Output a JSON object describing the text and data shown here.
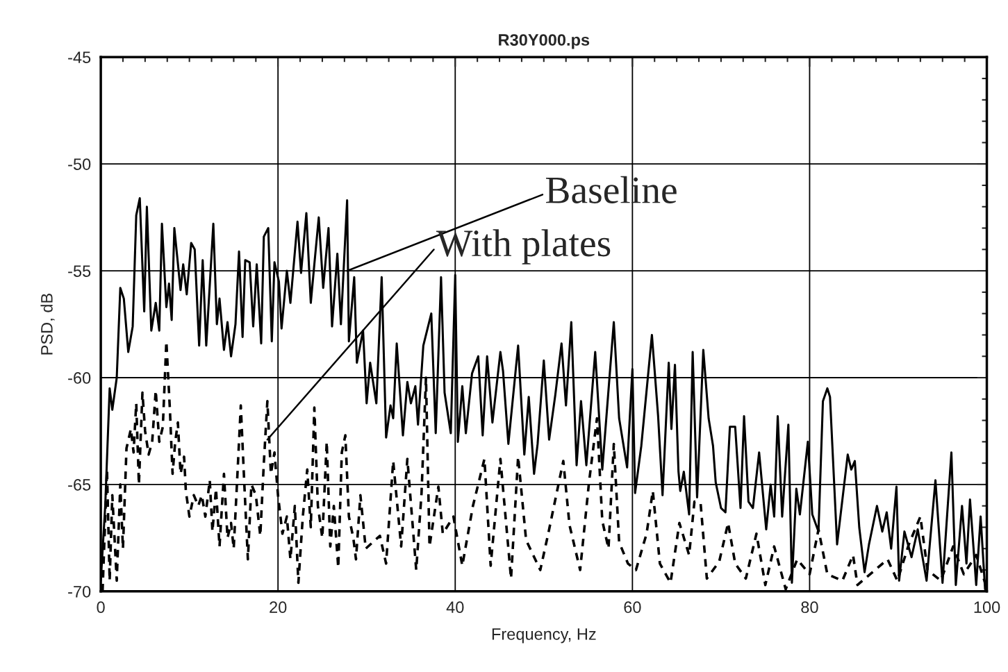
{
  "chart_data": {
    "type": "line",
    "title": "R30Y000.ps",
    "xlabel": "Frequency, Hz",
    "ylabel": "PSD, dB",
    "xlim": [
      0,
      100
    ],
    "ylim": [
      -70,
      -45
    ],
    "xticks": [
      0,
      20,
      40,
      60,
      80,
      100
    ],
    "yticks": [
      -70,
      -65,
      -60,
      -55,
      -50,
      -45
    ],
    "grid": true,
    "legend": false,
    "series": [
      {
        "color": "#000000",
        "line_style": "solid",
        "x": [
          0,
          0.5,
          1,
          1.3,
          1.8,
          2.2,
          2.6,
          3.1,
          3.6,
          4.0,
          4.4,
          4.9,
          5.2,
          5.7,
          6.2,
          6.6,
          6.9,
          7.4,
          7.7,
          8.0,
          8.3,
          9.0,
          9.3,
          9.7,
          10.2,
          10.6,
          11.1,
          11.5,
          11.9,
          12.7,
          13.1,
          13.4,
          13.9,
          14.3,
          14.7,
          15.2,
          15.6,
          16.0,
          16.3,
          16.8,
          17.2,
          17.6,
          18.1,
          18.4,
          18.9,
          19.3,
          19.6,
          20.1,
          20.4,
          21.0,
          21.4,
          22.2,
          22.6,
          23.2,
          23.7,
          24.1,
          24.6,
          25.1,
          25.7,
          26.1,
          26.7,
          27.1,
          27.8,
          28.0,
          28.6,
          28.9,
          29.6,
          30.0,
          30.4,
          31.1,
          31.7,
          32.2,
          32.7,
          33.0,
          33.4,
          34.1,
          34.6,
          35.0,
          35.5,
          35.8,
          36.4,
          37.3,
          37.8,
          38.4,
          38.8,
          39.5,
          40.0,
          40.3,
          40.8,
          41.2,
          41.9,
          42.6,
          43.1,
          43.6,
          44.2,
          45.1,
          45.4,
          46.0,
          47.1,
          47.8,
          48.3,
          48.9,
          49.3,
          50.0,
          50.6,
          51.3,
          52.0,
          52.5,
          53.1,
          53.7,
          54.2,
          54.8,
          55.8,
          56.6,
          57.9,
          58.5,
          59.4,
          60.0,
          60.3,
          61.0,
          62.2,
          62.9,
          63.4,
          64.1,
          64.4,
          64.8,
          65.2,
          65.4,
          65.8,
          66.4,
          66.8,
          67.3,
          68.0,
          68.6,
          69.1,
          69.4,
          70.0,
          70.5,
          71.0,
          71.6,
          72.2,
          72.6,
          73.1,
          73.6,
          74.3,
          75.1,
          75.6,
          76.0,
          76.4,
          76.9,
          77.6,
          78.0,
          78.5,
          78.9,
          79.8,
          80.3,
          81.0,
          81.5,
          82.0,
          82.3,
          83.1,
          84.3,
          84.7,
          85.1,
          85.6,
          86.2,
          86.7,
          87.6,
          88.2,
          88.7,
          89.2,
          89.8,
          90.1,
          90.7,
          91.5,
          92.2,
          93.2,
          94.2,
          95.0,
          96.0,
          96.5,
          97.2,
          97.7,
          98.1,
          98.8,
          99.3,
          99.8
        ],
        "values": [
          -69.5,
          -66,
          -60.5,
          -61.5,
          -60,
          -55.8,
          -56.3,
          -58.8,
          -57.6,
          -52.4,
          -51.6,
          -56.9,
          -52,
          -57.8,
          -56.5,
          -57.8,
          -52.8,
          -56.7,
          -55.6,
          -57.3,
          -53,
          -55.9,
          -54.7,
          -56.1,
          -53.7,
          -54,
          -58.5,
          -54.5,
          -58.5,
          -52.8,
          -57.5,
          -56.3,
          -58.7,
          -57.4,
          -59,
          -57.5,
          -54.1,
          -58.1,
          -54.5,
          -54.6,
          -57.6,
          -54.7,
          -58.4,
          -53.4,
          -53,
          -58.3,
          -54.6,
          -55.5,
          -57.7,
          -55,
          -56.5,
          -52.7,
          -55.1,
          -52.3,
          -56.5,
          -54.7,
          -52.5,
          -55.8,
          -53,
          -57.6,
          -54.2,
          -57.5,
          -51.7,
          -58.3,
          -55.3,
          -59.3,
          -57.8,
          -61.2,
          -59.3,
          -61.2,
          -55.3,
          -62.8,
          -61.3,
          -61.9,
          -58.4,
          -62.7,
          -60.2,
          -61.2,
          -60.4,
          -62.2,
          -58.5,
          -57,
          -62.6,
          -55.3,
          -60.7,
          -62.6,
          -55.2,
          -63,
          -60.4,
          -62.6,
          -59.8,
          -59,
          -62.7,
          -59,
          -62.1,
          -58.8,
          -59.7,
          -63.1,
          -58.5,
          -63.6,
          -60.9,
          -64.5,
          -63.1,
          -59.2,
          -62.9,
          -60.8,
          -58.4,
          -61.3,
          -57.4,
          -64.1,
          -61.1,
          -64.1,
          -58.8,
          -64.3,
          -57.4,
          -61.9,
          -64.2,
          -59.6,
          -65.4,
          -63.2,
          -58,
          -61.8,
          -65.5,
          -59.3,
          -62.4,
          -59.4,
          -64.4,
          -65.3,
          -64.4,
          -66.4,
          -58.8,
          -65.6,
          -58.7,
          -61.9,
          -63.2,
          -64.9,
          -66.1,
          -66.3,
          -62.3,
          -62.3,
          -66.1,
          -61.8,
          -65.8,
          -66.1,
          -63.5,
          -67.1,
          -65,
          -66.5,
          -61.8,
          -66.5,
          -62.2,
          -69.6,
          -65.2,
          -66.4,
          -63,
          -66.4,
          -67.2,
          -61.1,
          -60.5,
          -60.9,
          -67.8,
          -63.6,
          -64.3,
          -63.9,
          -67,
          -69.1,
          -67.8,
          -66,
          -67.2,
          -66.3,
          -68,
          -65.1,
          -69.5,
          -67.2,
          -68.4,
          -67.1,
          -69.5,
          -64.8,
          -69.6,
          -63.5,
          -69.7,
          -66,
          -68.7,
          -65.7,
          -69.7,
          -66.5,
          -69.9
        ]
      },
      {
        "color": "#000000",
        "line_style": "dashed",
        "x": [
          0.2,
          0.7,
          1.0,
          1.3,
          1.8,
          2.2,
          2.5,
          2.9,
          3.4,
          3.7,
          4.0,
          4.3,
          4.7,
          5.0,
          5.4,
          5.8,
          6.2,
          6.6,
          7.0,
          7.4,
          7.8,
          8.1,
          8.4,
          8.7,
          9.0,
          9.4,
          9.6,
          10.0,
          10.5,
          11.0,
          11.4,
          11.8,
          12.3,
          12.6,
          13.0,
          13.4,
          13.9,
          14.3,
          14.7,
          15.0,
          15.4,
          15.8,
          16.2,
          16.6,
          17.0,
          17.5,
          18.0,
          18.4,
          18.8,
          19.2,
          19.6,
          20.0,
          20.5,
          21.0,
          21.4,
          21.9,
          22.3,
          22.8,
          23.3,
          23.7,
          24.1,
          24.5,
          25.0,
          25.5,
          25.9,
          26.3,
          26.8,
          27.2,
          27.6,
          28.0,
          28.5,
          28.8,
          29.3,
          29.9,
          31.5,
          32.2,
          33.0,
          33.9,
          34.6,
          35.6,
          36.2,
          36.7,
          37.1,
          38.1,
          38.6,
          39.8,
          40.8,
          42.0,
          43.3,
          44.0,
          45.1,
          46.3,
          47.1,
          48.0,
          49.6,
          50.5,
          52.2,
          52.9,
          54.1,
          55.1,
          56.0,
          56.6,
          57.3,
          57.9,
          58.5,
          59.5,
          60.4,
          61.6,
          62.3,
          63.1,
          64.3,
          65.3,
          66.4,
          67.0,
          67.7,
          68.4,
          69.8,
          70.8,
          71.6,
          72.8,
          74.0,
          75.0,
          76.0,
          77.3,
          78.6,
          80.0,
          81.0,
          82.0,
          83.7,
          84.9,
          85.4,
          88.8,
          89.9,
          91.2,
          92.5,
          93.3,
          94.8,
          96.2,
          97.4,
          98.8,
          99.8
        ],
        "values": [
          -70,
          -64.3,
          -69.5,
          -65.5,
          -69.5,
          -65,
          -68,
          -63.3,
          -62.4,
          -63.5,
          -61.2,
          -65,
          -60.7,
          -62.5,
          -63.6,
          -63,
          -60.6,
          -63,
          -62.3,
          -58.3,
          -61.5,
          -64.5,
          -63,
          -62.1,
          -64.5,
          -63.7,
          -65.3,
          -66.5,
          -65.5,
          -66,
          -65.5,
          -66.5,
          -64.8,
          -67.2,
          -65.2,
          -67.9,
          -64.5,
          -67.5,
          -66.8,
          -68,
          -64.7,
          -61.3,
          -65,
          -68.5,
          -65,
          -65.5,
          -67.4,
          -64,
          -61.1,
          -64.5,
          -63.5,
          -65.5,
          -67.3,
          -66.5,
          -68.5,
          -66,
          -69.6,
          -66.5,
          -64.3,
          -67,
          -61.4,
          -66,
          -67.5,
          -63,
          -67.9,
          -66,
          -68.9,
          -63.5,
          -62.7,
          -66.5,
          -67.5,
          -68.5,
          -65.5,
          -68,
          -67.4,
          -68.7,
          -63.9,
          -67.9,
          -63.8,
          -69,
          -65.4,
          -60,
          -67.9,
          -65.1,
          -67.3,
          -66.5,
          -68.8,
          -66,
          -63.8,
          -68.8,
          -63.8,
          -69.4,
          -63.7,
          -67.6,
          -69,
          -67.3,
          -63.9,
          -66.9,
          -69,
          -64.9,
          -61.9,
          -66.7,
          -68,
          -63.1,
          -67.7,
          -68.7,
          -69,
          -67.3,
          -65.3,
          -68.7,
          -69.6,
          -66.8,
          -68.3,
          -65.8,
          -65.9,
          -69.4,
          -68.6,
          -66.8,
          -68.7,
          -69.4,
          -67.3,
          -69.7,
          -67.9,
          -69.9,
          -68.5,
          -69.2,
          -67.1,
          -69.2,
          -69.5,
          -68.3,
          -69.7,
          -68.5,
          -69.5,
          -67.8,
          -66.5,
          -69,
          -69.5,
          -67.9,
          -69.2,
          -68.3,
          -69.6
        ]
      }
    ],
    "annotations": [
      {
        "text": "Baseline",
        "x": 27.8,
        "y": -55
      },
      {
        "text": "With plates",
        "x": 18.8,
        "y": -62.9
      }
    ]
  }
}
